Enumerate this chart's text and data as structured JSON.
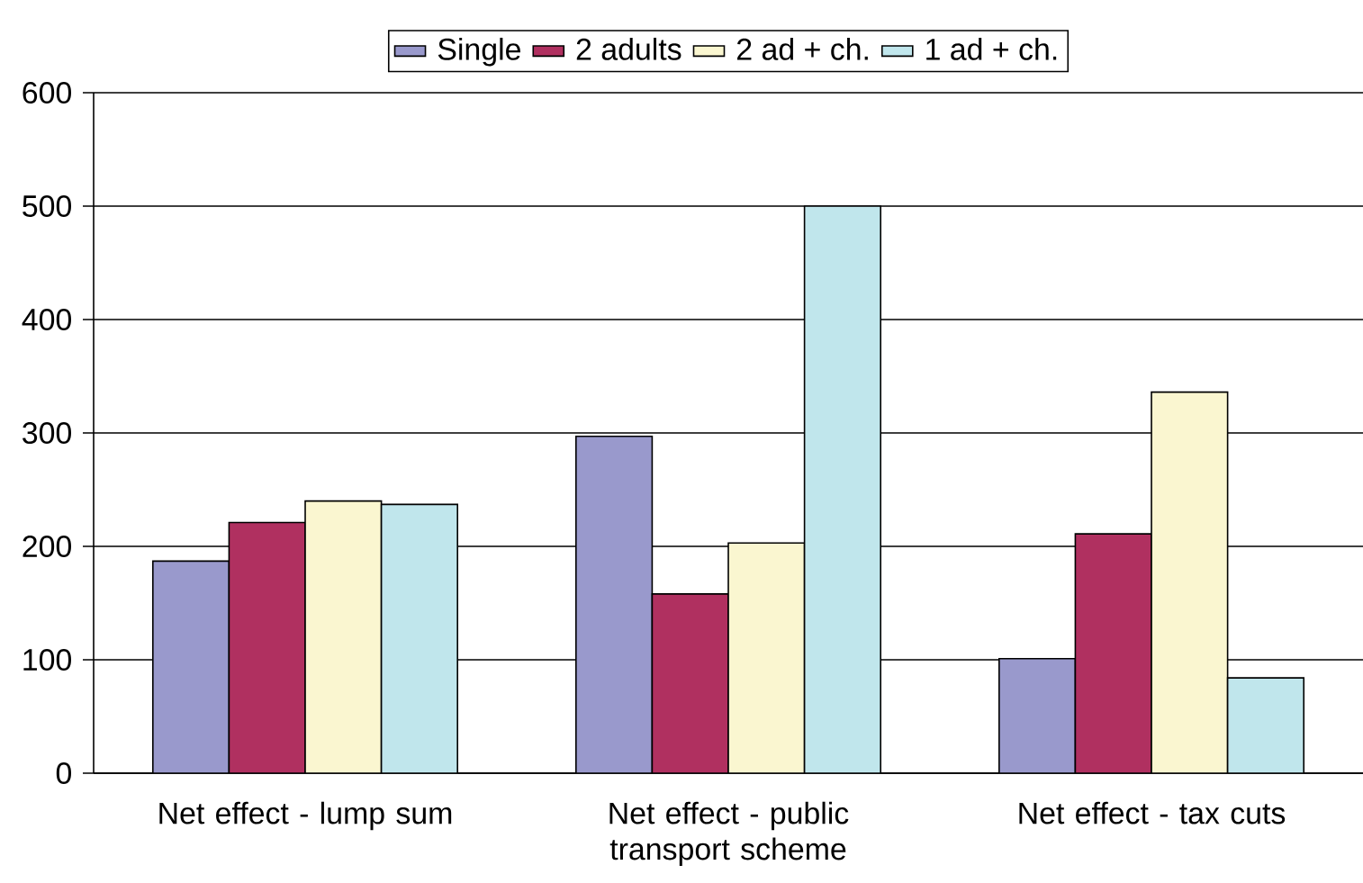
{
  "chart_data": {
    "type": "bar",
    "categories": [
      "Net effect - lump sum",
      "Net effect - public transport scheme",
      "Net effect - tax cuts"
    ],
    "series": [
      {
        "name": "Single",
        "color": "#9999cc",
        "values": [
          187,
          297,
          101
        ]
      },
      {
        "name": "2 adults",
        "color": "#b03060",
        "values": [
          221,
          158,
          211
        ]
      },
      {
        "name": "2 ad + ch.",
        "color": "#faf6d0",
        "values": [
          240,
          203,
          336
        ]
      },
      {
        "name": "1 ad + ch.",
        "color": "#c0e6ec",
        "values": [
          237,
          500,
          84
        ]
      }
    ],
    "ylim": [
      0,
      600
    ],
    "yticks": [
      0,
      100,
      200,
      300,
      400,
      500,
      600
    ],
    "grid": "y",
    "legend": "top"
  }
}
